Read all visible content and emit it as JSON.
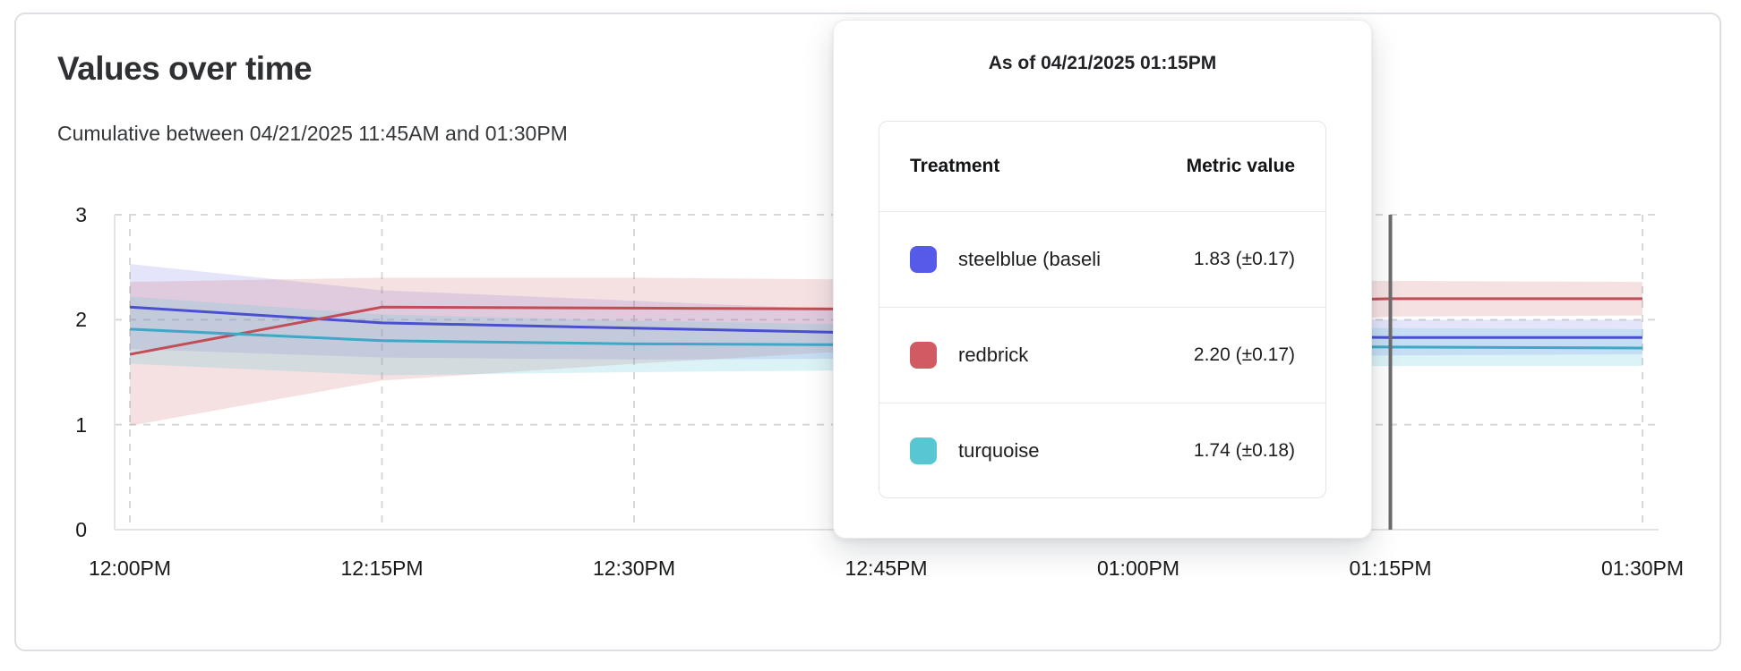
{
  "page": {
    "title": "Values over time",
    "subtitle": "Cumulative between 04/21/2025 11:45AM and 01:30PM"
  },
  "chart_data": {
    "type": "line",
    "title": "Values over time",
    "subtitle": "Cumulative between 04/21/2025 11:45AM and 01:30PM",
    "x_tick_labels": [
      "12:00PM",
      "12:15PM",
      "12:30PM",
      "12:45PM",
      "01:00PM",
      "01:15PM",
      "01:30PM"
    ],
    "y_ticks": [
      0,
      1,
      2,
      3
    ],
    "ylim": [
      0,
      3
    ],
    "grid": "dashed",
    "legend_position": "none",
    "cursor_index": 5,
    "cursor_color": "#6d6d6d",
    "series": [
      {
        "id": "steelblue",
        "name": "steelblue (baseline)",
        "color": "#4a4fd0",
        "band_color": "rgba(88,92,232,0.16)",
        "values": [
          2.12,
          1.97,
          1.92,
          1.87,
          1.85,
          1.83,
          1.83
        ],
        "upper": [
          2.53,
          2.28,
          2.18,
          2.08,
          2.03,
          2.0,
          2.0
        ],
        "lower": [
          1.72,
          1.64,
          1.62,
          1.63,
          1.65,
          1.66,
          1.67
        ]
      },
      {
        "id": "redbrick",
        "name": "redbrick",
        "color": "#c14e57",
        "band_color": "rgba(206,90,97,0.18)",
        "values": [
          1.67,
          2.12,
          2.11,
          2.1,
          2.15,
          2.2,
          2.2
        ],
        "upper": [
          2.36,
          2.4,
          2.4,
          2.38,
          2.37,
          2.37,
          2.36
        ],
        "lower": [
          0.99,
          1.42,
          1.58,
          1.72,
          1.9,
          2.03,
          2.04
        ]
      },
      {
        "id": "turquoise",
        "name": "turquoise",
        "color": "#3fa8c6",
        "band_color": "rgba(92,200,212,0.22)",
        "values": [
          1.91,
          1.8,
          1.77,
          1.76,
          1.75,
          1.74,
          1.73
        ],
        "upper": [
          2.22,
          2.05,
          1.99,
          1.95,
          1.93,
          1.92,
          1.91
        ],
        "lower": [
          1.58,
          1.47,
          1.5,
          1.52,
          1.54,
          1.56,
          1.56
        ]
      }
    ]
  },
  "tooltip": {
    "title": "As of 04/21/2025 01:15PM",
    "columns": [
      "Treatment",
      "Metric value"
    ],
    "rows": [
      {
        "label": "steelblue  (baseli",
        "value": "1.83 (±0.17)",
        "swatch": "#565ae9"
      },
      {
        "label": "redbrick",
        "value": "2.20 (±0.17)",
        "swatch": "#d15b62"
      },
      {
        "label": "turquoise",
        "value": "1.74 (±0.18)",
        "swatch": "#58c7d3"
      }
    ]
  }
}
